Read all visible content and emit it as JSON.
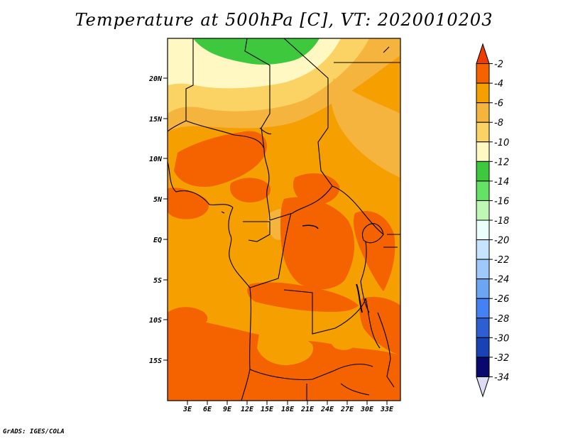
{
  "title": "Temperature at 500hPa [C], VT: 2020010203",
  "credit": "GrADS: IGES/COLA",
  "chart_data": {
    "type": "heatmap",
    "title": "Temperature at 500hPa [C], VT: 2020010203",
    "x_axis": {
      "ticks": [
        "3E",
        "6E",
        "9E",
        "12E",
        "15E",
        "18E",
        "21E",
        "24E",
        "27E",
        "30E",
        "33E"
      ],
      "range": [
        0,
        35
      ]
    },
    "y_axis": {
      "ticks": [
        "20N",
        "15N",
        "10N",
        "5N",
        "EQ",
        "5S",
        "10S",
        "15S"
      ],
      "range": [
        -20,
        25
      ]
    },
    "colorbar": {
      "levels": [
        "-2",
        "-4",
        "-6",
        "-8",
        "-10",
        "-12",
        "-14",
        "-16",
        "-18",
        "-20",
        "-22",
        "-24",
        "-26",
        "-28",
        "-30",
        "-32",
        "-34"
      ],
      "colors": [
        "#f03c00",
        "#f56200",
        "#f59f00",
        "#f5b43d",
        "#fad364",
        "#fff8c3",
        "#3dc83d",
        "#65e265",
        "#bef8b4",
        "#eafffb",
        "#c6e4ff",
        "#9ec9fa",
        "#6da5f5",
        "#4481f5",
        "#2d5fd2",
        "#1943b4",
        "#08086e",
        "#dcdcf5"
      ]
    }
  }
}
